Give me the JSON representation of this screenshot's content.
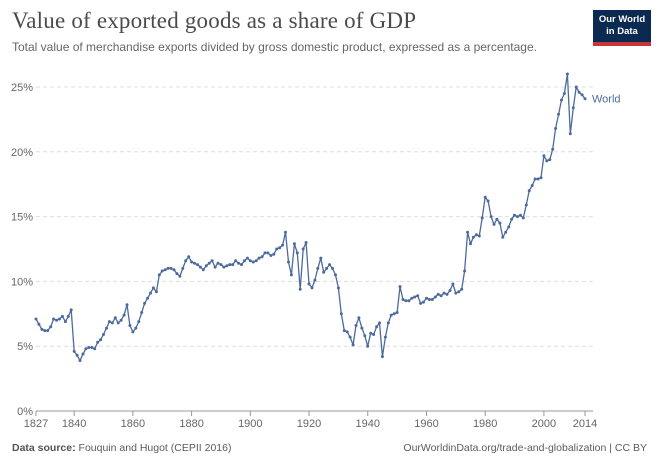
{
  "header": {
    "title": "Value of exported goods as a share of GDP",
    "subtitle": "Total value of merchandise exports divided by gross domestic product, expressed as a percentage."
  },
  "logo": {
    "line1": "Our World",
    "line2": "in Data"
  },
  "footer": {
    "source_label": "Data source:",
    "source_text": "Fouquin and Hugot (CEPII 2016)",
    "link_text": "OurWorldinData.org/trade-and-globalization | CC BY"
  },
  "colors": {
    "line": "#4c6a9c",
    "grid": "#dddddd",
    "logo_bg": "#0b2a51",
    "logo_accent": "#c8363b"
  },
  "chart_data": {
    "type": "line",
    "title": "Value of exported goods as a share of GDP",
    "xlabel": "",
    "ylabel": "",
    "xlim": [
      1827,
      2014
    ],
    "ylim": [
      0,
      25
    ],
    "grid": true,
    "x_ticks": [
      "1827",
      "1840",
      "1860",
      "1880",
      "1900",
      "1920",
      "1940",
      "1960",
      "1980",
      "2000",
      "2014"
    ],
    "x_tick_values": [
      1827,
      1840,
      1860,
      1880,
      1900,
      1920,
      1940,
      1960,
      1980,
      2000,
      2014
    ],
    "y_ticks": [
      "0%",
      "5%",
      "10%",
      "15%",
      "20%",
      "25%"
    ],
    "y_tick_values": [
      0,
      5,
      10,
      15,
      20,
      25
    ],
    "series": [
      {
        "name": "World",
        "points": [
          [
            1827,
            7.1
          ],
          [
            1828,
            6.7
          ],
          [
            1829,
            6.3
          ],
          [
            1830,
            6.2
          ],
          [
            1831,
            6.2
          ],
          [
            1832,
            6.5
          ],
          [
            1833,
            7.1
          ],
          [
            1834,
            7.0
          ],
          [
            1835,
            7.1
          ],
          [
            1836,
            7.3
          ],
          [
            1837,
            6.9
          ],
          [
            1838,
            7.3
          ],
          [
            1839,
            7.8
          ],
          [
            1840,
            4.6
          ],
          [
            1841,
            4.3
          ],
          [
            1842,
            3.9
          ],
          [
            1843,
            4.4
          ],
          [
            1844,
            4.8
          ],
          [
            1845,
            4.9
          ],
          [
            1846,
            4.9
          ],
          [
            1847,
            4.8
          ],
          [
            1848,
            5.3
          ],
          [
            1849,
            5.5
          ],
          [
            1850,
            5.9
          ],
          [
            1851,
            6.4
          ],
          [
            1852,
            6.9
          ],
          [
            1853,
            6.8
          ],
          [
            1854,
            7.2
          ],
          [
            1855,
            6.8
          ],
          [
            1856,
            7.0
          ],
          [
            1857,
            7.4
          ],
          [
            1858,
            8.2
          ],
          [
            1859,
            6.6
          ],
          [
            1860,
            6.1
          ],
          [
            1861,
            6.4
          ],
          [
            1862,
            6.9
          ],
          [
            1863,
            7.6
          ],
          [
            1864,
            8.3
          ],
          [
            1865,
            8.7
          ],
          [
            1866,
            9.1
          ],
          [
            1867,
            9.5
          ],
          [
            1868,
            9.2
          ],
          [
            1869,
            10.5
          ],
          [
            1870,
            10.8
          ],
          [
            1871,
            10.9
          ],
          [
            1872,
            11.0
          ],
          [
            1873,
            11.0
          ],
          [
            1874,
            10.9
          ],
          [
            1875,
            10.6
          ],
          [
            1876,
            10.4
          ],
          [
            1877,
            11.0
          ],
          [
            1878,
            11.6
          ],
          [
            1879,
            11.9
          ],
          [
            1880,
            11.5
          ],
          [
            1881,
            11.4
          ],
          [
            1882,
            11.3
          ],
          [
            1883,
            11.1
          ],
          [
            1884,
            10.9
          ],
          [
            1885,
            11.2
          ],
          [
            1886,
            11.4
          ],
          [
            1887,
            11.6
          ],
          [
            1888,
            11.1
          ],
          [
            1889,
            11.4
          ],
          [
            1890,
            11.3
          ],
          [
            1891,
            11.1
          ],
          [
            1892,
            11.2
          ],
          [
            1893,
            11.3
          ],
          [
            1894,
            11.3
          ],
          [
            1895,
            11.6
          ],
          [
            1896,
            11.4
          ],
          [
            1897,
            11.3
          ],
          [
            1898,
            11.6
          ],
          [
            1899,
            11.8
          ],
          [
            1900,
            11.6
          ],
          [
            1901,
            11.5
          ],
          [
            1902,
            11.6
          ],
          [
            1903,
            11.8
          ],
          [
            1904,
            11.9
          ],
          [
            1905,
            12.2
          ],
          [
            1906,
            12.2
          ],
          [
            1907,
            12.0
          ],
          [
            1908,
            12.1
          ],
          [
            1909,
            12.5
          ],
          [
            1910,
            12.6
          ],
          [
            1911,
            12.8
          ],
          [
            1912,
            13.8
          ],
          [
            1913,
            11.5
          ],
          [
            1914,
            10.5
          ],
          [
            1915,
            12.9
          ],
          [
            1916,
            12.2
          ],
          [
            1917,
            9.4
          ],
          [
            1918,
            12.5
          ],
          [
            1919,
            13.0
          ],
          [
            1920,
            9.8
          ],
          [
            1921,
            9.5
          ],
          [
            1922,
            10.1
          ],
          [
            1923,
            11.0
          ],
          [
            1924,
            11.8
          ],
          [
            1925,
            10.7
          ],
          [
            1926,
            11.0
          ],
          [
            1927,
            11.3
          ],
          [
            1928,
            11.0
          ],
          [
            1929,
            10.5
          ],
          [
            1930,
            9.5
          ],
          [
            1931,
            7.5
          ],
          [
            1932,
            6.2
          ],
          [
            1933,
            6.1
          ],
          [
            1934,
            5.7
          ],
          [
            1935,
            5.1
          ],
          [
            1936,
            6.6
          ],
          [
            1937,
            7.2
          ],
          [
            1938,
            6.4
          ],
          [
            1939,
            5.8
          ],
          [
            1940,
            5.0
          ],
          [
            1941,
            6.0
          ],
          [
            1942,
            5.9
          ],
          [
            1943,
            6.5
          ],
          [
            1944,
            6.8
          ],
          [
            1945,
            4.2
          ],
          [
            1946,
            5.7
          ],
          [
            1947,
            6.8
          ],
          [
            1948,
            7.4
          ],
          [
            1949,
            7.5
          ],
          [
            1950,
            7.6
          ],
          [
            1951,
            9.6
          ],
          [
            1952,
            8.6
          ],
          [
            1953,
            8.5
          ],
          [
            1954,
            8.5
          ],
          [
            1955,
            8.7
          ],
          [
            1956,
            8.8
          ],
          [
            1957,
            8.9
          ],
          [
            1958,
            8.3
          ],
          [
            1959,
            8.4
          ],
          [
            1960,
            8.7
          ],
          [
            1961,
            8.6
          ],
          [
            1962,
            8.6
          ],
          [
            1963,
            8.8
          ],
          [
            1964,
            9.0
          ],
          [
            1965,
            8.9
          ],
          [
            1966,
            9.1
          ],
          [
            1967,
            9.0
          ],
          [
            1968,
            9.3
          ],
          [
            1969,
            9.8
          ],
          [
            1970,
            9.1
          ],
          [
            1971,
            9.2
          ],
          [
            1972,
            9.4
          ],
          [
            1973,
            10.8
          ],
          [
            1974,
            13.8
          ],
          [
            1975,
            12.9
          ],
          [
            1976,
            13.4
          ],
          [
            1977,
            13.6
          ],
          [
            1978,
            13.5
          ],
          [
            1979,
            14.9
          ],
          [
            1980,
            16.5
          ],
          [
            1981,
            16.2
          ],
          [
            1982,
            15.0
          ],
          [
            1983,
            14.4
          ],
          [
            1984,
            14.8
          ],
          [
            1985,
            14.5
          ],
          [
            1986,
            13.4
          ],
          [
            1987,
            13.8
          ],
          [
            1988,
            14.2
          ],
          [
            1989,
            14.8
          ],
          [
            1990,
            15.1
          ],
          [
            1991,
            15.0
          ],
          [
            1992,
            15.1
          ],
          [
            1993,
            14.9
          ],
          [
            1994,
            15.9
          ],
          [
            1995,
            17.0
          ],
          [
            1996,
            17.4
          ],
          [
            1997,
            17.9
          ],
          [
            1998,
            17.9
          ],
          [
            1999,
            18.0
          ],
          [
            2000,
            19.7
          ],
          [
            2001,
            19.3
          ],
          [
            2002,
            19.4
          ],
          [
            2003,
            20.2
          ],
          [
            2004,
            21.8
          ],
          [
            2005,
            22.9
          ],
          [
            2006,
            24.0
          ],
          [
            2007,
            24.5
          ],
          [
            2008,
            26.0
          ],
          [
            2009,
            21.4
          ],
          [
            2010,
            23.4
          ],
          [
            2011,
            25.0
          ],
          [
            2012,
            24.6
          ],
          [
            2013,
            24.4
          ],
          [
            2014,
            24.1
          ]
        ]
      }
    ]
  }
}
